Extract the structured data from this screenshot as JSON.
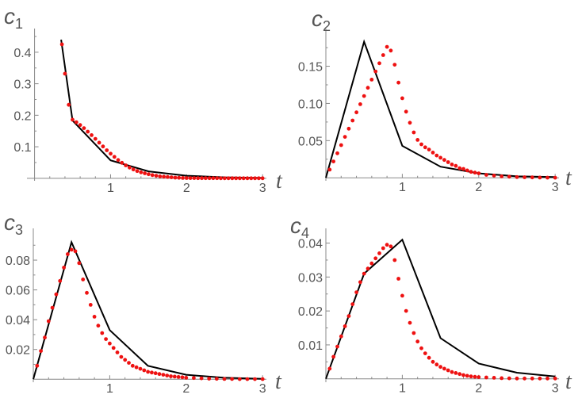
{
  "chart_data": [
    {
      "type": "line",
      "ylabel_base": "c",
      "ylabel_sub": "1",
      "xlabel": "t",
      "xlim": [
        -0.1,
        3.05
      ],
      "ylim": [
        -0.008,
        0.45
      ],
      "x_ticks": [
        {
          "v": 1,
          "label": "1"
        },
        {
          "v": 2,
          "label": "2"
        },
        {
          "v": 3,
          "label": "3"
        }
      ],
      "y_ticks": [
        {
          "v": 0.1,
          "label": "0.1"
        },
        {
          "v": 0.2,
          "label": "0.2"
        },
        {
          "v": 0.3,
          "label": "0.3"
        },
        {
          "v": 0.4,
          "label": "0.4"
        }
      ],
      "series": [
        {
          "style": "line",
          "color": "#000000",
          "x": [
            0.35,
            0.5,
            1.0,
            1.5,
            2.0,
            2.5,
            3.0
          ],
          "y": [
            0.44,
            0.183,
            0.057,
            0.022,
            0.008,
            0.003,
            0.001
          ]
        },
        {
          "style": "dots",
          "color": "#ee1111",
          "x": [
            0.36,
            0.4,
            0.45,
            0.5,
            0.55,
            0.6,
            0.65,
            0.7,
            0.75,
            0.8,
            0.85,
            0.9,
            0.95,
            1.0,
            1.05,
            1.1,
            1.15,
            1.2,
            1.25,
            1.3,
            1.35,
            1.4,
            1.45,
            1.5,
            1.55,
            1.6,
            1.65,
            1.7,
            1.75,
            1.8,
            1.85,
            1.9,
            1.95,
            2.0,
            2.05,
            2.1,
            2.15,
            2.2,
            2.25,
            2.3,
            2.35,
            2.4,
            2.45,
            2.5,
            2.55,
            2.6,
            2.65,
            2.7,
            2.75,
            2.8,
            2.85,
            2.9,
            2.95,
            3.0
          ],
          "y": [
            0.425,
            0.332,
            0.233,
            0.186,
            0.178,
            0.169,
            0.159,
            0.148,
            0.137,
            0.125,
            0.113,
            0.101,
            0.089,
            0.078,
            0.068,
            0.058,
            0.049,
            0.041,
            0.034,
            0.028,
            0.023,
            0.019,
            0.016,
            0.013,
            0.01,
            0.008,
            0.006,
            0.005,
            0.004,
            0.003,
            0.002,
            0.0015,
            0.001,
            0.0008,
            0.0006,
            0.0005,
            0.0004,
            0.0003,
            0.0003,
            0.0002,
            0.0002,
            0.0002,
            0.0001,
            0.0001,
            0.0001,
            0.0001,
            0.0001,
            0.0,
            0.0,
            0.0,
            0.0,
            0.0,
            0.0,
            0.0
          ]
        }
      ]
    },
    {
      "type": "line",
      "ylabel_base": "c",
      "ylabel_sub": "2",
      "xlabel": "t",
      "xlim": [
        0.0,
        3.05
      ],
      "ylim": [
        -0.004,
        0.19
      ],
      "x_ticks": [
        {
          "v": 1,
          "label": "1"
        },
        {
          "v": 2,
          "label": "2"
        },
        {
          "v": 3,
          "label": "3"
        }
      ],
      "y_ticks": [
        {
          "v": 0.05,
          "label": "0.05"
        },
        {
          "v": 0.1,
          "label": "0.10"
        },
        {
          "v": 0.15,
          "label": "0.15"
        }
      ],
      "series": [
        {
          "style": "line",
          "color": "#000000",
          "x": [
            0.0,
            0.5,
            1.0,
            1.5,
            2.0,
            2.5,
            3.0
          ],
          "y": [
            0.0,
            0.183,
            0.043,
            0.015,
            0.006,
            0.002,
            0.001
          ]
        },
        {
          "style": "dots",
          "color": "#ee1111",
          "x": [
            0.05,
            0.1,
            0.15,
            0.2,
            0.25,
            0.3,
            0.35,
            0.4,
            0.45,
            0.5,
            0.55,
            0.6,
            0.65,
            0.7,
            0.75,
            0.8,
            0.85,
            0.9,
            0.95,
            1.0,
            1.05,
            1.1,
            1.15,
            1.2,
            1.25,
            1.3,
            1.35,
            1.4,
            1.45,
            1.5,
            1.55,
            1.6,
            1.65,
            1.7,
            1.75,
            1.8,
            1.85,
            1.9,
            1.95,
            2.0,
            2.1,
            2.2,
            2.3,
            2.4,
            2.5,
            2.6,
            2.7,
            2.8,
            2.9,
            3.0
          ],
          "y": [
            0.011,
            0.022,
            0.033,
            0.044,
            0.055,
            0.066,
            0.077,
            0.088,
            0.099,
            0.11,
            0.121,
            0.132,
            0.143,
            0.154,
            0.165,
            0.176,
            0.171,
            0.152,
            0.128,
            0.107,
            0.089,
            0.074,
            0.061,
            0.051,
            0.045,
            0.041,
            0.038,
            0.034,
            0.03,
            0.027,
            0.024,
            0.021,
            0.018,
            0.016,
            0.013,
            0.012,
            0.01,
            0.008,
            0.007,
            0.006,
            0.004,
            0.003,
            0.002,
            0.0015,
            0.001,
            0.0008,
            0.0006,
            0.0004,
            0.0003,
            0.0002
          ]
        }
      ]
    },
    {
      "type": "line",
      "ylabel_base": "c",
      "ylabel_sub": "3",
      "xlabel": "t",
      "xlim": [
        0.0,
        3.05
      ],
      "ylim": [
        -0.002,
        0.096
      ],
      "x_ticks": [
        {
          "v": 1,
          "label": "1"
        },
        {
          "v": 2,
          "label": "2"
        },
        {
          "v": 3,
          "label": "3"
        }
      ],
      "y_ticks": [
        {
          "v": 0.02,
          "label": "0.02"
        },
        {
          "v": 0.04,
          "label": "0.04"
        },
        {
          "v": 0.06,
          "label": "0.06"
        },
        {
          "v": 0.08,
          "label": "0.08"
        }
      ],
      "series": [
        {
          "style": "line",
          "color": "#000000",
          "x": [
            0.0,
            0.5,
            1.0,
            1.5,
            2.0,
            2.5,
            3.0
          ],
          "y": [
            0.0,
            0.092,
            0.033,
            0.009,
            0.003,
            0.001,
            0.0003
          ]
        },
        {
          "style": "dots",
          "color": "#ee1111",
          "x": [
            0.05,
            0.1,
            0.15,
            0.2,
            0.25,
            0.3,
            0.35,
            0.4,
            0.45,
            0.5,
            0.55,
            0.6,
            0.65,
            0.7,
            0.75,
            0.8,
            0.85,
            0.9,
            0.95,
            1.0,
            1.05,
            1.1,
            1.15,
            1.2,
            1.25,
            1.3,
            1.35,
            1.4,
            1.45,
            1.5,
            1.55,
            1.6,
            1.65,
            1.7,
            1.75,
            1.8,
            1.85,
            1.9,
            1.95,
            2.0,
            2.1,
            2.2,
            2.3,
            2.4,
            2.5,
            2.6,
            2.7,
            2.8,
            2.9,
            3.0
          ],
          "y": [
            0.009,
            0.019,
            0.028,
            0.039,
            0.048,
            0.057,
            0.066,
            0.075,
            0.084,
            0.087,
            0.086,
            0.078,
            0.067,
            0.058,
            0.05,
            0.042,
            0.036,
            0.031,
            0.027,
            0.024,
            0.021,
            0.018,
            0.015,
            0.013,
            0.011,
            0.009,
            0.008,
            0.007,
            0.006,
            0.005,
            0.0045,
            0.004,
            0.0035,
            0.003,
            0.0025,
            0.002,
            0.0018,
            0.0015,
            0.0013,
            0.001,
            0.0008,
            0.0006,
            0.0004,
            0.0003,
            0.0002,
            0.0002,
            0.0001,
            0.0001,
            0.0001,
            0.0001
          ]
        }
      ]
    },
    {
      "type": "line",
      "ylabel_base": "c",
      "ylabel_sub": "4",
      "xlabel": "t",
      "xlim": [
        0.0,
        3.05
      ],
      "ylim": [
        -0.001,
        0.042
      ],
      "x_ticks": [
        {
          "v": 1,
          "label": "1"
        },
        {
          "v": 2,
          "label": "2"
        },
        {
          "v": 3,
          "label": "3"
        }
      ],
      "y_ticks": [
        {
          "v": 0.01,
          "label": "0.01"
        },
        {
          "v": 0.02,
          "label": "0.02"
        },
        {
          "v": 0.03,
          "label": "0.03"
        },
        {
          "v": 0.04,
          "label": "0.04"
        }
      ],
      "series": [
        {
          "style": "line",
          "color": "#000000",
          "x": [
            0.0,
            0.5,
            1.0,
            1.5,
            2.0,
            2.5,
            3.0
          ],
          "y": [
            0.0,
            0.031,
            0.041,
            0.012,
            0.0045,
            0.0018,
            0.0007
          ]
        },
        {
          "style": "dots",
          "color": "#ee1111",
          "x": [
            0.05,
            0.1,
            0.15,
            0.2,
            0.25,
            0.3,
            0.35,
            0.4,
            0.45,
            0.5,
            0.55,
            0.6,
            0.65,
            0.7,
            0.75,
            0.8,
            0.85,
            0.9,
            0.95,
            1.0,
            1.05,
            1.1,
            1.15,
            1.2,
            1.25,
            1.3,
            1.35,
            1.4,
            1.45,
            1.5,
            1.55,
            1.6,
            1.65,
            1.7,
            1.75,
            1.8,
            1.85,
            1.9,
            1.95,
            2.0,
            2.1,
            2.2,
            2.3,
            2.4,
            2.5,
            2.6,
            2.7,
            2.8,
            2.9,
            3.0
          ],
          "y": [
            0.003,
            0.0065,
            0.0095,
            0.0125,
            0.0155,
            0.0185,
            0.022,
            0.0255,
            0.0285,
            0.031,
            0.0325,
            0.034,
            0.0355,
            0.037,
            0.0385,
            0.0395,
            0.039,
            0.035,
            0.0295,
            0.0245,
            0.02,
            0.0165,
            0.0135,
            0.011,
            0.009,
            0.0075,
            0.0062,
            0.005,
            0.0042,
            0.0035,
            0.003,
            0.0025,
            0.002,
            0.0017,
            0.0014,
            0.0011,
            0.0009,
            0.0007,
            0.0006,
            0.0005,
            0.0004,
            0.0003,
            0.0002,
            0.00015,
            0.0001,
            0.0001,
            0.0001,
            0.0001,
            0.0001,
            0.0001
          ]
        }
      ]
    }
  ]
}
